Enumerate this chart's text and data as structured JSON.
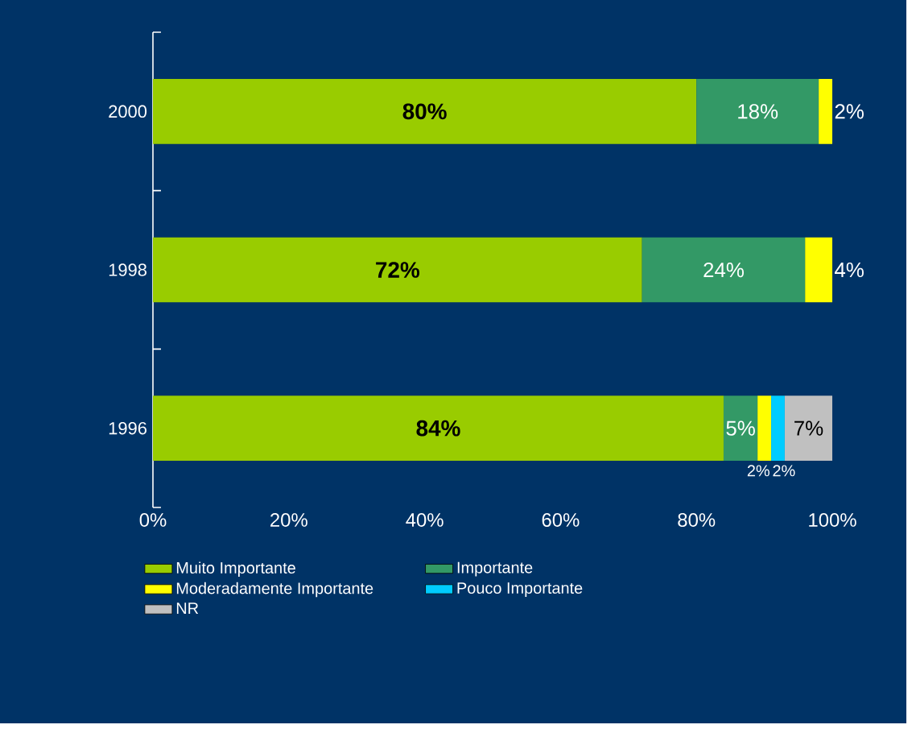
{
  "chart_data": {
    "type": "bar",
    "orientation": "horizontal",
    "stacked": true,
    "categories": [
      "2000",
      "1998",
      "1996"
    ],
    "series": [
      {
        "name": "Muito Importante",
        "color": "#99cc00",
        "values": [
          80,
          72,
          84
        ],
        "value_labels": [
          "80%",
          "72%",
          "84%"
        ]
      },
      {
        "name": "Importante",
        "color": "#339966",
        "values": [
          18,
          24,
          5
        ],
        "value_labels": [
          "18%",
          "24%",
          "5%"
        ]
      },
      {
        "name": "Moderadamente Importante",
        "color": "#ffff00",
        "values": [
          2,
          4,
          2
        ],
        "value_labels": [
          "2%",
          "4%",
          "2%"
        ]
      },
      {
        "name": "Pouco Importante",
        "color": "#00ccff",
        "values": [
          null,
          null,
          2
        ],
        "value_labels": [
          null,
          null,
          "2%"
        ]
      },
      {
        "name": "NR",
        "color": "#c0c0c0",
        "values": [
          null,
          null,
          7
        ],
        "value_labels": [
          null,
          null,
          "7%"
        ]
      }
    ],
    "xlim": [
      0,
      100
    ],
    "xticks": [
      {
        "value": 0,
        "label": "0%"
      },
      {
        "value": 20,
        "label": "20%"
      },
      {
        "value": 40,
        "label": "40%"
      },
      {
        "value": 60,
        "label": "60%"
      },
      {
        "value": 80,
        "label": "80%"
      },
      {
        "value": 100,
        "label": "100%"
      }
    ],
    "legend": "bottom"
  }
}
